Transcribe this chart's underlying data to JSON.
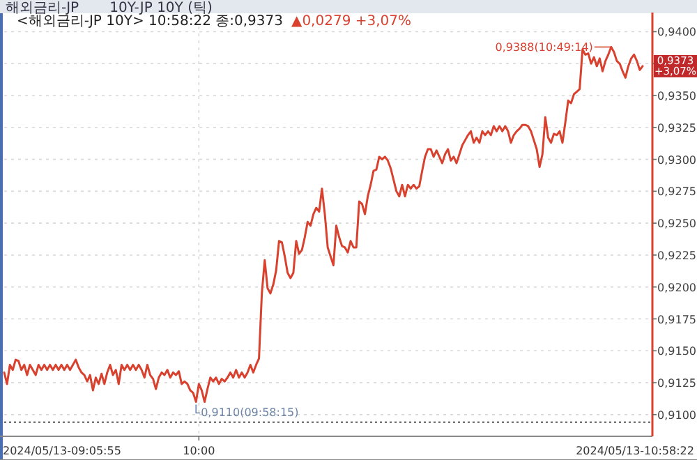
{
  "chart_data": {
    "type": "line",
    "title": "해외금리-JP",
    "subtitle": "10Y-JP 10Y (틱)",
    "categories": [
      null,
      null,
      null,
      null,
      null,
      null,
      null,
      null,
      null,
      null,
      null,
      null,
      null,
      null,
      null,
      null,
      null,
      null,
      null,
      null,
      null,
      null,
      null,
      null,
      null,
      null,
      null,
      null,
      null,
      null,
      null,
      null,
      null,
      null,
      null,
      null,
      null,
      null,
      null,
      null,
      null,
      null,
      null,
      null,
      null,
      null,
      null,
      null,
      null,
      null,
      null,
      null,
      null,
      null,
      null,
      null,
      null,
      null,
      null,
      null,
      null,
      null,
      null,
      null,
      null,
      null,
      null,
      null,
      "10:00",
      null,
      null,
      null,
      null,
      null,
      null,
      null,
      null,
      null,
      null,
      null,
      null,
      null,
      null,
      null,
      null,
      null,
      null,
      null,
      null,
      null,
      null,
      null,
      null,
      null,
      null,
      null,
      null,
      null,
      null,
      null,
      null,
      null,
      null,
      null,
      null,
      null,
      null,
      null,
      null,
      null,
      null,
      null,
      null,
      null,
      null,
      null,
      null,
      null,
      null,
      null,
      null,
      null,
      null,
      null,
      null,
      null,
      null,
      null,
      null,
      null,
      null,
      null,
      null,
      null,
      null,
      null,
      null,
      null,
      null,
      null,
      null,
      null,
      null,
      null,
      null,
      null,
      null,
      null,
      null,
      null,
      null,
      null,
      null,
      null,
      null,
      null,
      null,
      null,
      null,
      null,
      null,
      null,
      null,
      null,
      null,
      null,
      null,
      null,
      null,
      null,
      null,
      null,
      null,
      null,
      null,
      null,
      null,
      null,
      null,
      null,
      null,
      null,
      null,
      null,
      null,
      null,
      null,
      null,
      null,
      null,
      null,
      null,
      null,
      null,
      null,
      null,
      null,
      null,
      null,
      null,
      null,
      null,
      null,
      null,
      null,
      null,
      null,
      null,
      null,
      null,
      null,
      null,
      null,
      null,
      null,
      null,
      null,
      null,
      null,
      null,
      null,
      null,
      null,
      null
    ],
    "series": [
      {
        "color": "#d9412f",
        "values": [
          0.9133,
          0.9124,
          0.9139,
          0.9135,
          0.9143,
          0.9142,
          0.9135,
          0.9139,
          0.9131,
          0.9139,
          0.9135,
          0.9131,
          0.9139,
          0.9135,
          0.9139,
          0.9135,
          0.9139,
          0.9135,
          0.9139,
          0.9135,
          0.9139,
          0.9135,
          0.9139,
          0.9135,
          0.9139,
          0.9143,
          0.9137,
          0.9133,
          0.9131,
          0.9126,
          0.9131,
          0.9119,
          0.9129,
          0.9124,
          0.9132,
          0.9124,
          0.9133,
          0.9139,
          0.9131,
          0.9135,
          0.9124,
          0.9139,
          0.9135,
          0.9139,
          0.9135,
          0.9139,
          0.9135,
          0.9139,
          0.9135,
          0.9129,
          0.9139,
          0.9131,
          0.9128,
          0.912,
          0.9129,
          0.9133,
          0.9131,
          0.9135,
          0.9129,
          0.9133,
          0.9131,
          0.9134,
          0.9124,
          0.9126,
          0.9124,
          0.9119,
          0.9117,
          0.911,
          0.9124,
          0.9119,
          0.911,
          0.912,
          0.9129,
          0.9126,
          0.9129,
          0.9124,
          0.9128,
          0.9126,
          0.9129,
          0.9133,
          0.9129,
          0.9135,
          0.9129,
          0.9133,
          0.9129,
          0.9133,
          0.9139,
          0.9133,
          0.9139,
          0.9144,
          0.9195,
          0.9221,
          0.9199,
          0.9195,
          0.9202,
          0.9213,
          0.9236,
          0.9235,
          0.9224,
          0.9211,
          0.9207,
          0.9211,
          0.9236,
          0.9226,
          0.9229,
          0.9239,
          0.9251,
          0.9248,
          0.9257,
          0.9262,
          0.9259,
          0.9277,
          0.9257,
          0.9231,
          0.9224,
          0.9217,
          0.9248,
          0.9239,
          0.9232,
          0.9231,
          0.9227,
          0.9236,
          0.9231,
          0.9231,
          0.9267,
          0.9265,
          0.9257,
          0.9271,
          0.928,
          0.9291,
          0.9292,
          0.9302,
          0.93,
          0.9302,
          0.9299,
          0.9293,
          0.9284,
          0.9275,
          0.9271,
          0.928,
          0.9271,
          0.928,
          0.9277,
          0.928,
          0.9277,
          0.9279,
          0.9291,
          0.9302,
          0.9308,
          0.9308,
          0.9302,
          0.9307,
          0.9302,
          0.9297,
          0.9304,
          0.9308,
          0.9299,
          0.9302,
          0.9297,
          0.9304,
          0.9311,
          0.9315,
          0.9319,
          0.9322,
          0.9313,
          0.9317,
          0.9313,
          0.9322,
          0.9319,
          0.9322,
          0.9319,
          0.9326,
          0.9322,
          0.9326,
          0.9322,
          0.9326,
          0.9322,
          0.9313,
          0.9319,
          0.9322,
          0.9324,
          0.9327,
          0.9327,
          0.9326,
          0.9322,
          0.9315,
          0.9308,
          0.9294,
          0.9304,
          0.9333,
          0.9317,
          0.9313,
          0.932,
          0.9319,
          0.9322,
          0.9313,
          0.9329,
          0.9346,
          0.9344,
          0.9351,
          0.9353,
          0.9355,
          0.9386,
          0.9382,
          0.9383,
          0.9375,
          0.938,
          0.9373,
          0.9379,
          0.9369,
          0.9377,
          0.9382,
          0.9388,
          0.9384,
          0.9377,
          0.9375,
          0.9369,
          0.9364,
          0.9373,
          0.9379,
          0.9382,
          0.9377,
          0.937,
          0.9373
        ]
      }
    ],
    "ylim": [
      0.9083,
      0.9415
    ],
    "yticks": [
      {
        "value": 0.91,
        "label": "0,9100"
      },
      {
        "value": 0.9125,
        "label": "0,9125"
      },
      {
        "value": 0.915,
        "label": "0,9150"
      },
      {
        "value": 0.9175,
        "label": "0,9175"
      },
      {
        "value": 0.92,
        "label": "0,9200"
      },
      {
        "value": 0.9225,
        "label": "0,9225"
      },
      {
        "value": 0.925,
        "label": "0,9250"
      },
      {
        "value": 0.9275,
        "label": "0,9275"
      },
      {
        "value": 0.93,
        "label": "0,9300"
      },
      {
        "value": 0.9325,
        "label": "0,9325"
      },
      {
        "value": 0.935,
        "label": "0,9350"
      },
      {
        "value": 0.9375,
        "label": null
      },
      {
        "value": 0.94,
        "label": "0,9400"
      }
    ],
    "grid": true,
    "line_style": "solid",
    "ref_lines": [
      {
        "axis": "y",
        "value": 0.9094,
        "color": "#555555",
        "line_style": "dotted"
      }
    ],
    "annotations": [
      "<해외금리-JP 10Y> 10:58:22 종:0,9373",
      "▲0,0279 +3,07%",
      "0,9110(09:58:15)",
      "0,9388(10:49:14)",
      "0,9373\n+3,07%",
      "2024/05/13-09:05:55",
      "2024/05/13-10:58:22"
    ]
  }
}
